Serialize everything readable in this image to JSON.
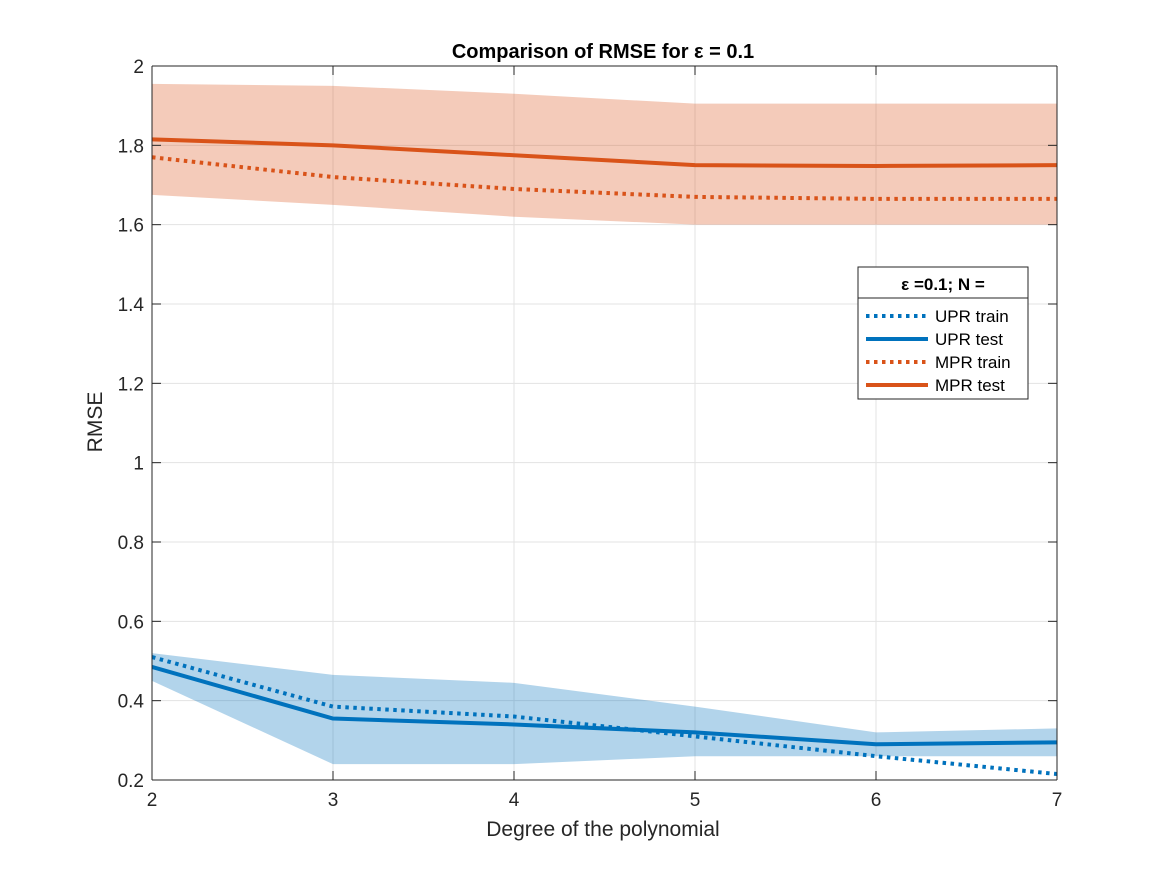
{
  "chart_data": {
    "type": "line",
    "title": "Comparison of RMSE for ε = 0.1",
    "xlabel": "Degree of the polynomial",
    "ylabel": "RMSE",
    "xlim": [
      2,
      7
    ],
    "ylim": [
      0.2,
      2
    ],
    "xticks": [
      2,
      3,
      4,
      5,
      6,
      7
    ],
    "xtick_labels": [
      "2",
      "3",
      "4",
      "5",
      "6",
      "7"
    ],
    "yticks": [
      0.2,
      0.4,
      0.6,
      0.8,
      1.0,
      1.2,
      1.4,
      1.6,
      1.8,
      2.0
    ],
    "ytick_labels": [
      "0.2",
      "0.4",
      "0.6",
      "0.8",
      "1",
      "1.2",
      "1.4",
      "1.6",
      "1.8",
      "2"
    ],
    "grid": true,
    "x": [
      2,
      3,
      4,
      5,
      6,
      7
    ],
    "series": [
      {
        "name": "UPR train",
        "values": [
          0.51,
          0.385,
          0.36,
          0.31,
          0.26,
          0.215
        ],
        "color": "#0072BD",
        "style": "dotted"
      },
      {
        "name": "UPR test",
        "values": [
          0.485,
          0.355,
          0.34,
          0.32,
          0.29,
          0.295
        ],
        "color": "#0072BD",
        "style": "solid"
      },
      {
        "name": "MPR train",
        "values": [
          1.77,
          1.72,
          1.69,
          1.67,
          1.665,
          1.665
        ],
        "color": "#D95319",
        "style": "dotted"
      },
      {
        "name": "MPR test",
        "values": [
          1.815,
          1.8,
          1.775,
          1.75,
          1.748,
          1.75
        ],
        "color": "#D95319",
        "style": "solid"
      }
    ],
    "bands": [
      {
        "color": "#0072BD",
        "lower": [
          0.45,
          0.24,
          0.24,
          0.26,
          0.26,
          0.26
        ],
        "upper": [
          0.52,
          0.465,
          0.445,
          0.385,
          0.32,
          0.33
        ]
      },
      {
        "color": "#D95319",
        "lower": [
          1.675,
          1.65,
          1.62,
          1.6,
          1.6,
          1.6
        ],
        "upper": [
          1.955,
          1.95,
          1.93,
          1.905,
          1.905,
          1.905
        ]
      }
    ],
    "legend": {
      "title": "ε =0.1; N =",
      "location": "east",
      "entries": [
        "UPR train",
        "UPR test",
        "MPR train",
        "MPR test"
      ]
    }
  }
}
